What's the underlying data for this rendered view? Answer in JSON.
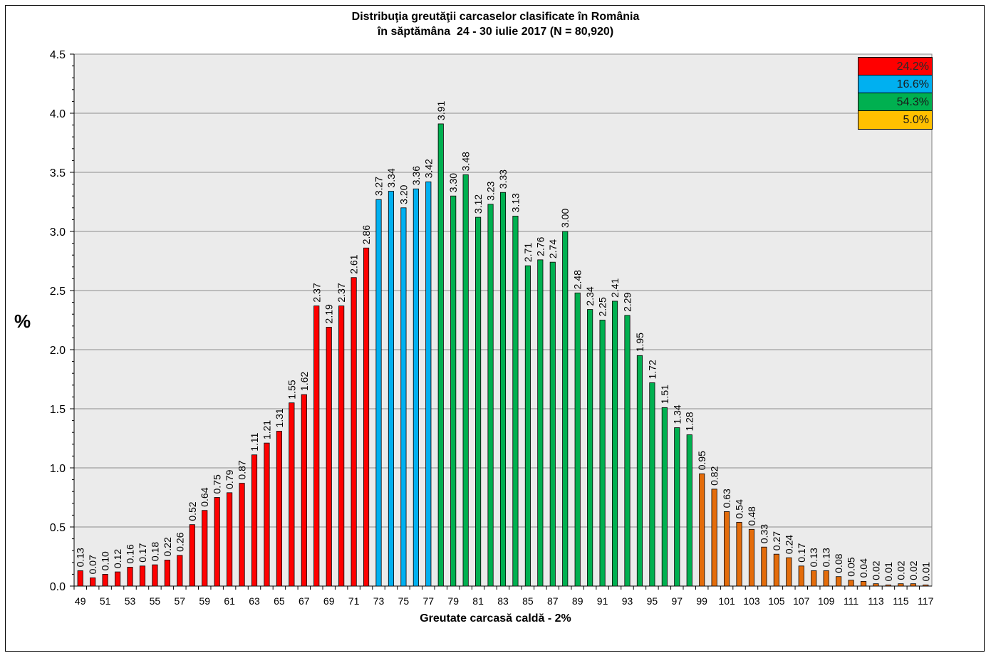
{
  "chart_data": {
    "type": "bar",
    "title": "Distribuţia greutăţii carcaselor clasificate în România",
    "subtitle": "în săptămâna  24 - 30 iulie 2017 (N = 80,920)",
    "xlabel": "Greutate carcasă caldă - 2%",
    "ylabel": "%",
    "ylim": [
      0,
      4.5
    ],
    "y_ticks": [
      "0.0",
      "0.5",
      "1.0",
      "1.5",
      "2.0",
      "2.5",
      "3.0",
      "3.5",
      "4.0",
      "4.5"
    ],
    "grid": true,
    "categories": [
      49,
      50,
      51,
      52,
      53,
      54,
      55,
      56,
      57,
      58,
      59,
      60,
      61,
      62,
      63,
      64,
      65,
      66,
      67,
      68,
      69,
      70,
      71,
      72,
      73,
      74,
      75,
      76,
      77,
      78,
      79,
      80,
      81,
      82,
      83,
      84,
      85,
      86,
      87,
      88,
      89,
      90,
      91,
      92,
      93,
      94,
      95,
      96,
      97,
      98,
      99,
      100,
      101,
      102,
      103,
      104,
      105,
      106,
      107,
      108,
      109,
      110,
      111,
      112,
      113,
      114,
      115,
      116,
      117
    ],
    "x_tick_labels": [
      "49",
      "51",
      "53",
      "55",
      "57",
      "59",
      "61",
      "63",
      "65",
      "67",
      "69",
      "71",
      "73",
      "75",
      "77",
      "79",
      "81",
      "83",
      "85",
      "87",
      "89",
      "91",
      "93",
      "95",
      "97",
      "99",
      "101",
      "103",
      "105",
      "107",
      "109",
      "111",
      "113",
      "115",
      "117"
    ],
    "values": [
      0.13,
      0.07,
      0.1,
      0.12,
      0.16,
      0.17,
      0.18,
      0.22,
      0.26,
      0.52,
      0.64,
      0.75,
      0.79,
      0.87,
      1.11,
      1.21,
      1.31,
      1.55,
      1.62,
      2.37,
      2.19,
      2.37,
      2.61,
      2.86,
      3.27,
      3.34,
      3.2,
      3.36,
      3.42,
      3.91,
      3.3,
      3.48,
      3.12,
      3.23,
      3.33,
      3.13,
      2.71,
      2.76,
      2.74,
      3.0,
      2.48,
      2.34,
      2.25,
      2.41,
      2.29,
      1.95,
      1.72,
      1.51,
      1.34,
      1.28,
      0.95,
      0.82,
      0.63,
      0.54,
      0.48,
      0.33,
      0.27,
      0.24,
      0.17,
      0.13,
      0.13,
      0.08,
      0.05,
      0.04,
      0.02,
      0.01,
      0.02,
      0.02,
      0.01
    ],
    "value_labels": [
      "0.13",
      "0.07",
      "0.10",
      "0.12",
      "0.16",
      "0.17",
      "0.18",
      "0.22",
      "0.26",
      "0.52",
      "0.64",
      "0.75",
      "0.79",
      "0.87",
      "1.11",
      "1.21",
      "1.31",
      "1.55",
      "1.62",
      "2.37",
      "2.19",
      "2.37",
      "2.61",
      "2.86",
      "3.27",
      "3.34",
      "3.20",
      "3.36",
      "3.42",
      "3.91",
      "3.30",
      "3.48",
      "3.12",
      "3.23",
      "3.33",
      "3.13",
      "2.71",
      "2.76",
      "2.74",
      "3.00",
      "2.48",
      "2.34",
      "2.25",
      "2.41",
      "2.29",
      "1.95",
      "1.72",
      "1.51",
      "1.34",
      "1.28",
      "0.95",
      "0.82",
      "0.63",
      "0.54",
      "0.48",
      "0.33",
      "0.27",
      "0.24",
      "0.17",
      "0.13",
      "0.13",
      "0.08",
      "0.05",
      "0.04",
      "0.02",
      "0.01",
      "0.02",
      "0.02",
      "0.01"
    ],
    "groups": [
      {
        "label": "24.2%",
        "color": "#ff0000",
        "from": 49,
        "to": 72
      },
      {
        "label": "16.6%",
        "color": "#00b0f0",
        "from": 73,
        "to": 77
      },
      {
        "label": "54.3%",
        "color": "#00b050",
        "from": 78,
        "to": 98
      },
      {
        "label": "5.0%",
        "color": "#ffc000",
        "bar_color": "#e46c0a",
        "from": 99,
        "to": 117
      }
    ],
    "legend_position": "top-right",
    "plot_background": "#ebebeb"
  }
}
